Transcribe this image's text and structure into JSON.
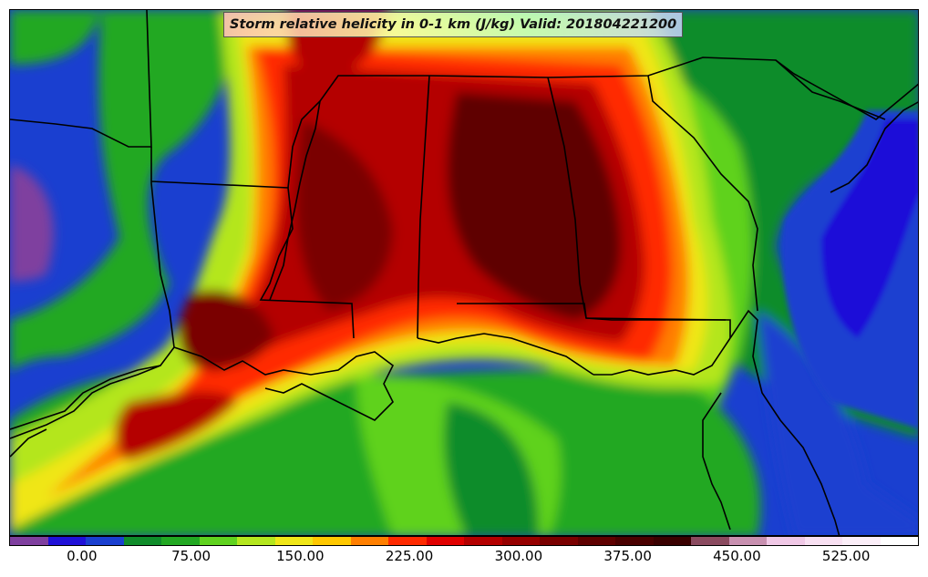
{
  "title": "Storm relative helicity in 0-1 km (J/kg) Valid: 201804221200",
  "colorbar": {
    "min": -50,
    "max": 575,
    "colors": [
      "#7f3f9f",
      "#1f10d8",
      "#1a3fd0",
      "#0f8c2a",
      "#22a822",
      "#5fd21e",
      "#b4e61e",
      "#f0e618",
      "#ffc800",
      "#ff7f00",
      "#ff2a00",
      "#e00000",
      "#b40000",
      "#960000",
      "#7a0000",
      "#5f0000",
      "#4a0000",
      "#3a0000",
      "#8a4a5f",
      "#c890b0",
      "#f0c8e6",
      "#f8e0f2",
      "#fbeef8",
      "#ffffff"
    ],
    "ticks": [
      "0.00",
      "75.00",
      "150.00",
      "225.00",
      "300.00",
      "375.00",
      "450.00",
      "525.00"
    ],
    "tick_values": [
      0,
      75,
      150,
      225,
      300,
      375,
      450,
      525
    ]
  },
  "map": {
    "background_color": "#1a3fd0",
    "field_colors": {
      "low": "#1a3fd0",
      "green_dark": "#0f8c2a",
      "green": "#22a822",
      "green_light": "#5fd21e",
      "yellow_green": "#b4e61e",
      "yellow": "#f0e618",
      "orange": "#ff7f00",
      "red": "#ff2a00",
      "red_dark": "#b40000",
      "maroon": "#5f0000"
    }
  }
}
